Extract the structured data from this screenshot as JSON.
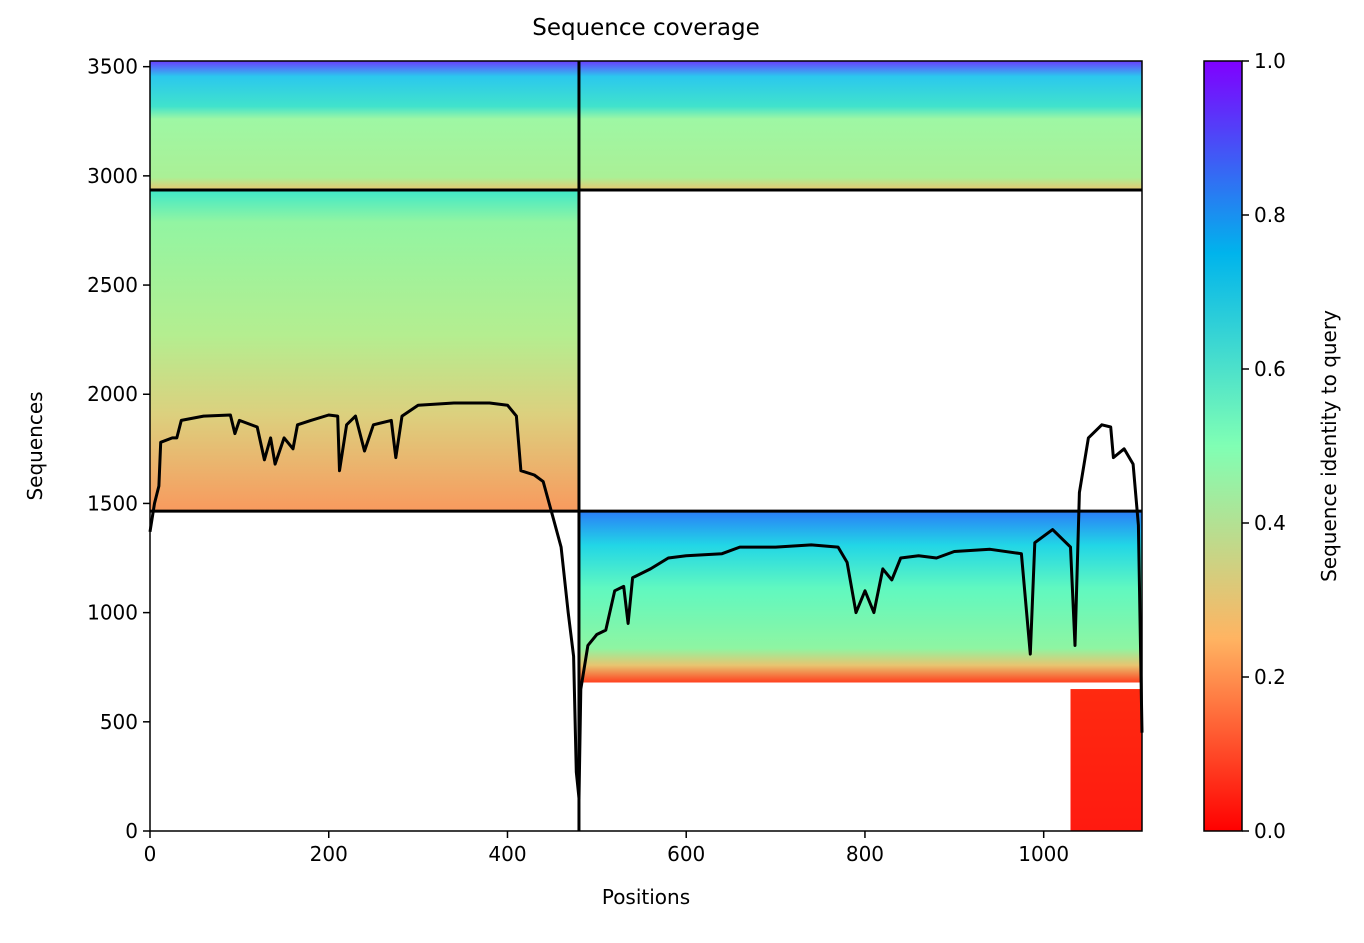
{
  "chart_data": {
    "type": "line",
    "title": "Sequence coverage",
    "x_label": "Positions",
    "y_label": "Sequences",
    "colorbar_label": "Sequence identity to query",
    "xlim": [
      0,
      1110
    ],
    "ylim": [
      0,
      3526
    ],
    "xticks": [
      0,
      200,
      400,
      600,
      800,
      1000
    ],
    "yticks": [
      0,
      500,
      1000,
      1500,
      2000,
      2500,
      3000,
      3500
    ],
    "colorbar_lim": [
      0,
      1
    ],
    "colorbar_ticks": [
      {
        "value": 0,
        "label": "0.0"
      },
      {
        "value": 0.2,
        "label": "0.2"
      },
      {
        "value": 0.4,
        "label": "0.4"
      },
      {
        "value": 0.6,
        "label": "0.6"
      },
      {
        "value": 0.8,
        "label": "0.8"
      },
      {
        "value": 1,
        "label": "1.0"
      }
    ],
    "blocks": [
      {
        "x": [
          0,
          480
        ],
        "y": [
          2935,
          3526
        ]
      },
      {
        "x": [
          480,
          1110
        ],
        "y": [
          2935,
          3526
        ]
      },
      {
        "x": [
          0,
          480
        ],
        "y": [
          1465,
          2935
        ]
      },
      {
        "x": [
          480,
          1110
        ],
        "y": [
          680,
          1465
        ]
      },
      {
        "x": [
          1030,
          1110
        ],
        "y": [
          0,
          650
        ]
      }
    ],
    "dividers": {
      "x": [
        480
      ],
      "y": [
        1465,
        2935
      ]
    },
    "series": [
      {
        "name": "coverage",
        "color": "#000000",
        "x": [
          0,
          5,
          10,
          12,
          25,
          30,
          35,
          60,
          90,
          95,
          100,
          120,
          128,
          135,
          140,
          150,
          160,
          165,
          180,
          200,
          210,
          212,
          220,
          230,
          240,
          250,
          270,
          275,
          282,
          300,
          340,
          380,
          400,
          410,
          415,
          430,
          440,
          450,
          460,
          468,
          474,
          477,
          480,
          482,
          490,
          500,
          510,
          520,
          530,
          535,
          540,
          560,
          580,
          600,
          640,
          660,
          700,
          740,
          770,
          780,
          790,
          800,
          810,
          820,
          830,
          840,
          860,
          880,
          900,
          940,
          975,
          985,
          990,
          1010,
          1030,
          1035,
          1040,
          1050,
          1065,
          1075,
          1078,
          1090,
          1100,
          1106,
          1110
        ],
        "values": [
          1370,
          1500,
          1580,
          1780,
          1800,
          1800,
          1880,
          1900,
          1905,
          1820,
          1880,
          1850,
          1700,
          1800,
          1680,
          1800,
          1750,
          1860,
          1880,
          1905,
          1900,
          1650,
          1860,
          1900,
          1740,
          1860,
          1880,
          1710,
          1900,
          1950,
          1960,
          1960,
          1950,
          1900,
          1650,
          1630,
          1600,
          1450,
          1300,
          1000,
          800,
          270,
          150,
          650,
          850,
          900,
          920,
          1100,
          1120,
          950,
          1160,
          1200,
          1250,
          1260,
          1270,
          1300,
          1300,
          1310,
          1300,
          1230,
          1000,
          1100,
          1000,
          1200,
          1150,
          1250,
          1260,
          1250,
          1280,
          1290,
          1270,
          810,
          1320,
          1380,
          1300,
          850,
          1550,
          1800,
          1860,
          1850,
          1710,
          1750,
          1680,
          1400,
          450
        ]
      }
    ]
  }
}
